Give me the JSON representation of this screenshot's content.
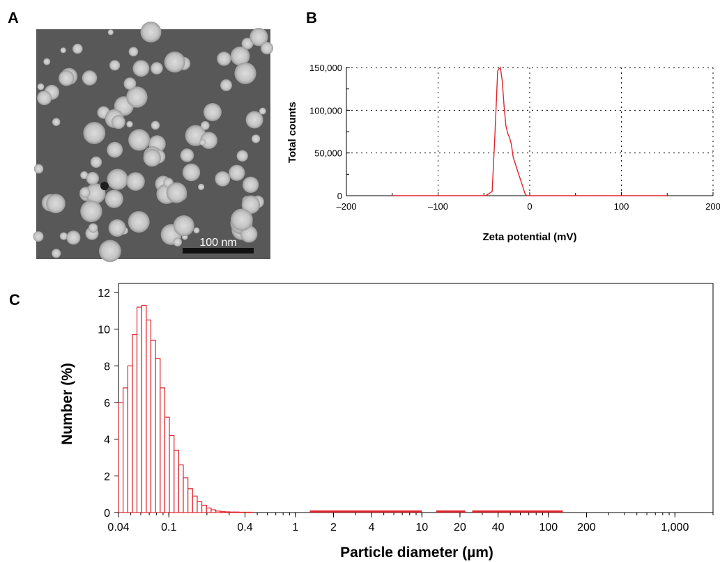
{
  "panels": {
    "a": "A",
    "b": "B",
    "c": "C"
  },
  "tem": {
    "scale_bar_label": "100 nm"
  },
  "chart_data": [
    {
      "panel": "B",
      "type": "line",
      "xlabel": "Zeta potential (mV)",
      "ylabel": "Total counts",
      "xlim": [
        -200,
        200
      ],
      "ylim": [
        0,
        150000
      ],
      "xticks": [
        -200,
        -100,
        0,
        100,
        200
      ],
      "xtick_labels": [
        "–200",
        "–100",
        "0",
        "100",
        "200"
      ],
      "yticks": [
        0,
        50000,
        100000,
        150000
      ],
      "ytick_labels": [
        "0",
        "50,000",
        "100,000",
        "150,000"
      ],
      "grid": "dotted",
      "color": "#e0242b",
      "series": [
        {
          "x": [
            -150,
            -48,
            -45,
            -41,
            -38,
            -35,
            -34,
            -32,
            -30,
            -28,
            -26,
            -24,
            -22,
            -20,
            -18,
            -15,
            -12,
            -8,
            -5,
            -3,
            0,
            50,
            150
          ],
          "y": [
            0,
            0,
            2000,
            5000,
            70000,
            146000,
            148000,
            150000,
            135000,
            105000,
            82000,
            73000,
            68000,
            60000,
            45000,
            35000,
            25000,
            12000,
            2000,
            0,
            0,
            0,
            0
          ]
        }
      ]
    },
    {
      "panel": "C",
      "type": "bar",
      "xlabel": "Particle diameter (µm)",
      "ylabel": "Number (%)",
      "xscale": "log",
      "xlim": [
        0.04,
        2000
      ],
      "ylim": [
        0,
        12
      ],
      "xticks": [
        0.04,
        0.1,
        0.4,
        1,
        2,
        4,
        10,
        20,
        40,
        100,
        200,
        1000
      ],
      "xtick_labels": [
        "0.04",
        "0.1",
        "0.4",
        "1",
        "2",
        "4",
        "10",
        "20",
        "40",
        "100",
        "200",
        "1,000"
      ],
      "yticks": [
        0,
        2,
        4,
        6,
        8,
        10,
        12
      ],
      "ytick_labels": [
        "0",
        "2",
        "4",
        "6",
        "8",
        "10",
        "12"
      ],
      "color": "#e0242b",
      "bin_edges": [
        0.04,
        0.0435,
        0.0474,
        0.0515,
        0.056,
        0.061,
        0.0663,
        0.0721,
        0.0785,
        0.0854,
        0.0929,
        0.101,
        0.11,
        0.1196,
        0.1301,
        0.1416,
        0.154,
        0.1676,
        0.1823,
        0.1984,
        0.2158,
        0.2348,
        0.2555,
        0.278,
        0.3024,
        0.329,
        0.358,
        0.3895,
        0.4238,
        0.4611
      ],
      "values": [
        6.0,
        6.8,
        8.0,
        9.7,
        11.2,
        11.3,
        10.5,
        9.4,
        8.4,
        6.8,
        5.2,
        4.2,
        3.4,
        2.6,
        1.9,
        1.3,
        0.9,
        0.6,
        0.4,
        0.25,
        0.15,
        0.08,
        0.05,
        0.04,
        0.03,
        0.03,
        0.02,
        0.02,
        0.02
      ],
      "trace_ranges": [
        [
          1.3,
          10
        ],
        [
          13,
          22
        ],
        [
          25,
          130
        ]
      ]
    }
  ]
}
